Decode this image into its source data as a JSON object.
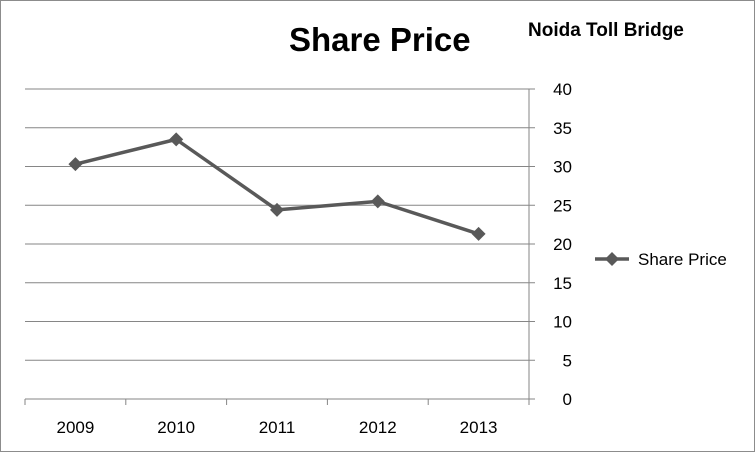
{
  "chart_data": {
    "type": "line",
    "title": "Share Price",
    "subtitle": "Noida Toll Bridge",
    "xlabel": "",
    "ylabel": "",
    "categories": [
      "2009",
      "2010",
      "2011",
      "2012",
      "2013"
    ],
    "series": [
      {
        "name": "Share Price",
        "values": [
          30.3,
          33.5,
          24.4,
          25.5,
          21.3
        ]
      }
    ],
    "ylim": [
      0,
      40
    ],
    "yticks": [
      0,
      5,
      10,
      15,
      20,
      25,
      30,
      35,
      40
    ],
    "y_axis_side": "right",
    "grid": true,
    "legend": "right",
    "line_color": "#595959",
    "grid_color": "#868686",
    "marker": "diamond"
  }
}
